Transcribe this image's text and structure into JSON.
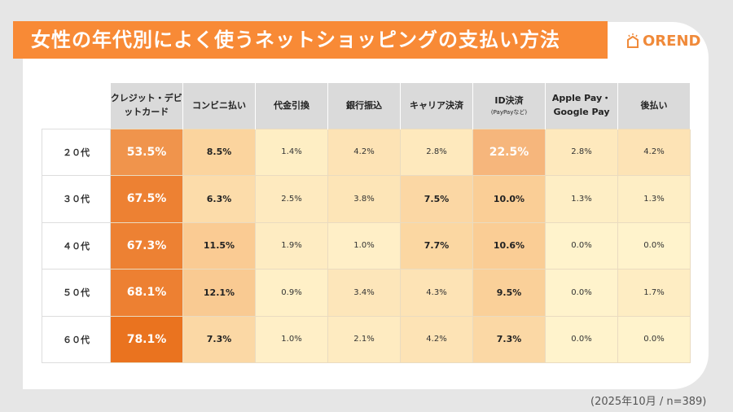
{
  "title": "女性の年代別によく使うネットショッピングの支払い方法",
  "logo": "OREND",
  "footnote": "(2025年10月 /  n=389)",
  "chart_data": {
    "type": "heatmap",
    "title": "女性の年代別によく使うネットショッピングの支払い方法",
    "columns": [
      {
        "label": "クレジット・デビットカード",
        "sub": ""
      },
      {
        "label": "コンビニ払い",
        "sub": ""
      },
      {
        "label": "代金引換",
        "sub": ""
      },
      {
        "label": "銀行振込",
        "sub": ""
      },
      {
        "label": "キャリア決済",
        "sub": ""
      },
      {
        "label": "ID決済",
        "sub": "(PayPayなど)"
      },
      {
        "label": "Apple Pay・Google Pay",
        "sub": ""
      },
      {
        "label": "後払い",
        "sub": ""
      }
    ],
    "rows": [
      "２０代",
      "３０代",
      "４０代",
      "５０代",
      "６０代"
    ],
    "unit": "%",
    "values": [
      [
        53.5,
        8.5,
        1.4,
        4.2,
        2.8,
        22.5,
        2.8,
        4.2
      ],
      [
        67.5,
        6.3,
        2.5,
        3.8,
        7.5,
        10.0,
        1.3,
        1.3
      ],
      [
        67.3,
        11.5,
        1.9,
        1.0,
        7.7,
        10.6,
        0.0,
        0.0
      ],
      [
        68.1,
        12.1,
        0.9,
        3.4,
        4.3,
        9.5,
        0.0,
        1.7
      ],
      [
        78.1,
        7.3,
        1.0,
        2.1,
        4.2,
        7.3,
        0.0,
        0.0
      ]
    ]
  }
}
